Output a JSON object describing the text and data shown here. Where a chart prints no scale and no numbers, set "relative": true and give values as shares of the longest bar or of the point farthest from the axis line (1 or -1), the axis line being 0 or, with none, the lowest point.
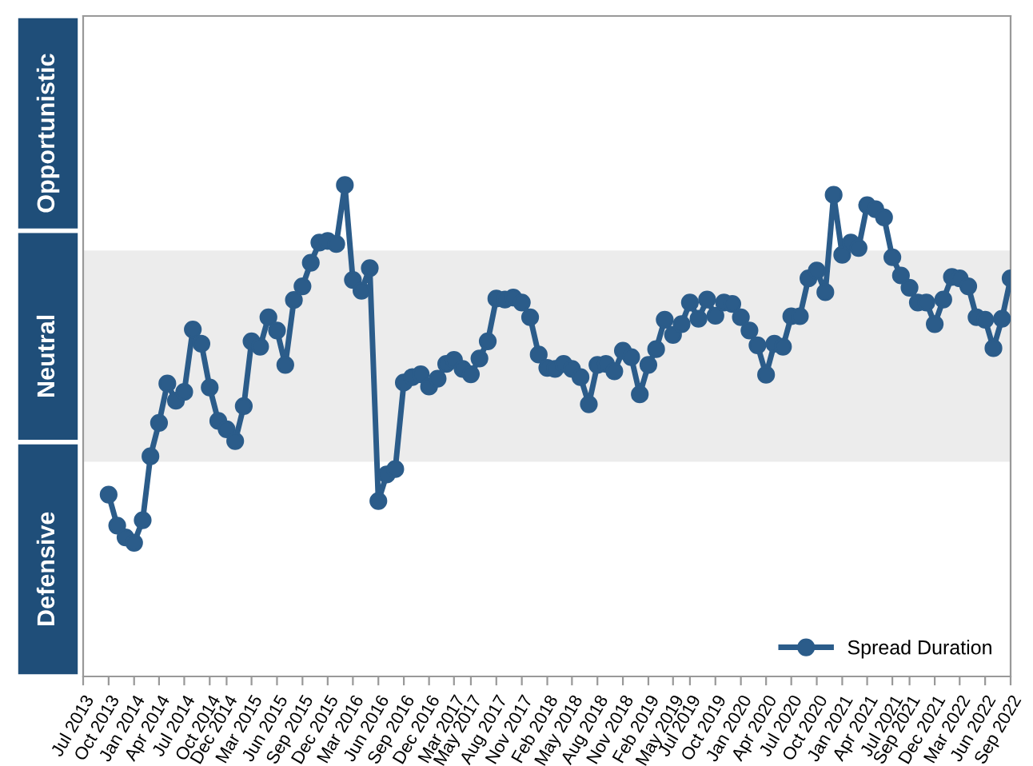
{
  "chart_data": {
    "type": "line",
    "relative": true,
    "marker": "circle",
    "line_style": "solid",
    "legend": "bottom right",
    "grid": false,
    "annotations": [
      "Opportunistic",
      "Neutral",
      "Defensive"
    ],
    "xlim": [
      "2013-07",
      "2022-09"
    ],
    "xticks": [
      {
        "value": "2013-07",
        "label": "Jul 2013"
      },
      {
        "value": "2013-10",
        "label": "Oct 2013"
      },
      {
        "value": "2014-01",
        "label": "Jan 2014"
      },
      {
        "value": "2014-04",
        "label": "Apr 2014"
      },
      {
        "value": "2014-07",
        "label": "Jul 2014"
      },
      {
        "value": "2014-10",
        "label": "Oct 2014"
      },
      {
        "value": "2014-12",
        "label": "Dec 2014"
      },
      {
        "value": "2015-03",
        "label": "Mar 2015"
      },
      {
        "value": "2015-06",
        "label": "Jun 2015"
      },
      {
        "value": "2015-09",
        "label": "Sep 2015"
      },
      {
        "value": "2015-12",
        "label": "Dec 2015"
      },
      {
        "value": "2016-03",
        "label": "Mar 2016"
      },
      {
        "value": "2016-06",
        "label": "Jun 2016"
      },
      {
        "value": "2016-09",
        "label": "Sep 2016"
      },
      {
        "value": "2016-12",
        "label": "Dec 2016"
      },
      {
        "value": "2017-03",
        "label": "Mar 2017"
      },
      {
        "value": "2017-05",
        "label": "May 2017"
      },
      {
        "value": "2017-08",
        "label": "Aug 2017"
      },
      {
        "value": "2017-11",
        "label": "Nov 2017"
      },
      {
        "value": "2018-02",
        "label": "Feb 2018"
      },
      {
        "value": "2018-05",
        "label": "May 2018"
      },
      {
        "value": "2018-08",
        "label": "Aug 2018"
      },
      {
        "value": "2018-11",
        "label": "Nov 2018"
      },
      {
        "value": "2019-02",
        "label": "Feb 2019"
      },
      {
        "value": "2019-05",
        "label": "May 2019"
      },
      {
        "value": "2019-07",
        "label": "Jul 2019"
      },
      {
        "value": "2019-10",
        "label": "Oct 2019"
      },
      {
        "value": "2020-01",
        "label": "Jan 2020"
      },
      {
        "value": "2020-04",
        "label": "Apr 2020"
      },
      {
        "value": "2020-07",
        "label": "Jul 2020"
      },
      {
        "value": "2020-10",
        "label": "Oct 2020"
      },
      {
        "value": "2021-01",
        "label": "Jan 2021"
      },
      {
        "value": "2021-04",
        "label": "Apr 2021"
      },
      {
        "value": "2021-07",
        "label": "Jul 2021"
      },
      {
        "value": "2021-09",
        "label": "Sep 2021"
      },
      {
        "value": "2021-12",
        "label": "Dec 2021"
      },
      {
        "value": "2022-03",
        "label": "Mar 2022"
      },
      {
        "value": "2022-06",
        "label": "Jun 2022"
      },
      {
        "value": "2022-09",
        "label": "Sep 2022"
      }
    ],
    "x": [
      "2013-10",
      "2013-11",
      "2013-12",
      "2014-01",
      "2014-02",
      "2014-03",
      "2014-04",
      "2014-05",
      "2014-06",
      "2014-07",
      "2014-08",
      "2014-09",
      "2014-10",
      "2014-11",
      "2014-12",
      "2015-01",
      "2015-02",
      "2015-03",
      "2015-04",
      "2015-05",
      "2015-06",
      "2015-07",
      "2015-08",
      "2015-09",
      "2015-10",
      "2015-11",
      "2015-12",
      "2016-01",
      "2016-02",
      "2016-03",
      "2016-04",
      "2016-05",
      "2016-06",
      "2016-07",
      "2016-08",
      "2016-09",
      "2016-10",
      "2016-11",
      "2016-12",
      "2017-01",
      "2017-02",
      "2017-03",
      "2017-04",
      "2017-05",
      "2017-06",
      "2017-07",
      "2017-08",
      "2017-09",
      "2017-10",
      "2017-11",
      "2017-12",
      "2018-01",
      "2018-02",
      "2018-03",
      "2018-04",
      "2018-05",
      "2018-06",
      "2018-07",
      "2018-08",
      "2018-09",
      "2018-10",
      "2018-11",
      "2018-12",
      "2019-01",
      "2019-02",
      "2019-03",
      "2019-04",
      "2019-05",
      "2019-06",
      "2019-07",
      "2019-08",
      "2019-09",
      "2019-10",
      "2019-11",
      "2019-12",
      "2020-01",
      "2020-02",
      "2020-03",
      "2020-04",
      "2020-05",
      "2020-06",
      "2020-07",
      "2020-08",
      "2020-09",
      "2020-10",
      "2020-11",
      "2020-12",
      "2021-01",
      "2021-02",
      "2021-03",
      "2021-04",
      "2021-05",
      "2021-06",
      "2021-07",
      "2021-08",
      "2021-09",
      "2021-10",
      "2021-11",
      "2021-12",
      "2022-01",
      "2022-02",
      "2022-03",
      "2022-04",
      "2022-05",
      "2022-06",
      "2022-07",
      "2022-08",
      "2022-09"
    ],
    "series": [
      {
        "name": "Spread Duration",
        "color": "#2b5c8a",
        "values": [
          0.37,
          0.307,
          0.283,
          0.272,
          0.318,
          0.448,
          0.516,
          0.596,
          0.561,
          0.579,
          0.706,
          0.677,
          0.588,
          0.52,
          0.503,
          0.479,
          0.55,
          0.682,
          0.671,
          0.731,
          0.704,
          0.634,
          0.766,
          0.794,
          0.842,
          0.883,
          0.886,
          0.88,
          1,
          0.807,
          0.785,
          0.831,
          0.357,
          0.411,
          0.422,
          0.598,
          0.609,
          0.615,
          0.59,
          0.606,
          0.636,
          0.644,
          0.626,
          0.615,
          0.647,
          0.682,
          0.769,
          0.767,
          0.771,
          0.761,
          0.731,
          0.655,
          0.628,
          0.626,
          0.636,
          0.626,
          0.609,
          0.554,
          0.634,
          0.636,
          0.621,
          0.663,
          0.65,
          0.574,
          0.634,
          0.666,
          0.726,
          0.695,
          0.717,
          0.761,
          0.728,
          0.767,
          0.734,
          0.761,
          0.758,
          0.731,
          0.704,
          0.674,
          0.614,
          0.677,
          0.671,
          0.733,
          0.733,
          0.81,
          0.826,
          0.782,
          0.98,
          0.858,
          0.883,
          0.872,
          0.959,
          0.951,
          0.934,
          0.853,
          0.816,
          0.791,
          0.761,
          0.761,
          0.717,
          0.767,
          0.813,
          0.81,
          0.794,
          0.731,
          0.726,
          0.668,
          0.728,
          0.81
        ]
      }
    ]
  }
}
